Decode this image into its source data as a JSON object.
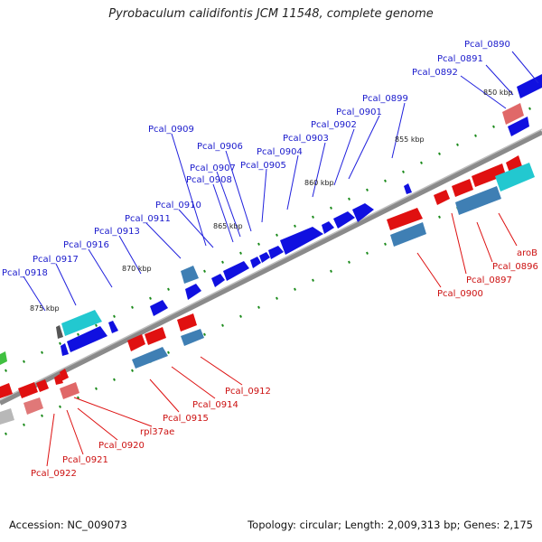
{
  "title": "Pyrobaculum calidifontis JCM 11548, complete genome",
  "footer": {
    "accession": "Accession: NC_009073",
    "summary": "Topology: circular; Length: 2,009,313 bp; Genes: 2,175"
  },
  "colors": {
    "forward_gene": "#1010e0",
    "reverse_gene": "#e01010",
    "rna_gene": "#22c8d0",
    "backbone": "#777777",
    "tick": "#1a8a1a"
  },
  "scale_labels": [
    "850 kbp",
    "855 kbp",
    "860 kbp",
    "865 kbp",
    "870 kbp",
    "875 kbp"
  ],
  "top_labels": [
    "Pcal_0890",
    "Pcal_0891",
    "Pcal_0892",
    "Pcal_0899",
    "Pcal_0901",
    "Pcal_0902",
    "Pcal_0903",
    "Pcal_0904",
    "Pcal_0905",
    "Pcal_0906",
    "Pcal_0907",
    "Pcal_0908",
    "Pcal_0909",
    "Pcal_0910",
    "Pcal_0911",
    "Pcal_0913",
    "Pcal_0916",
    "Pcal_0917",
    "Pcal_0918"
  ],
  "bottom_labels": [
    "aroB",
    "Pcal_0896",
    "Pcal_0897",
    "Pcal_0900",
    "Pcal_0912",
    "Pcal_0914",
    "Pcal_0915",
    "rpl37ae",
    "Pcal_0920",
    "Pcal_0921",
    "Pcal_0922"
  ]
}
